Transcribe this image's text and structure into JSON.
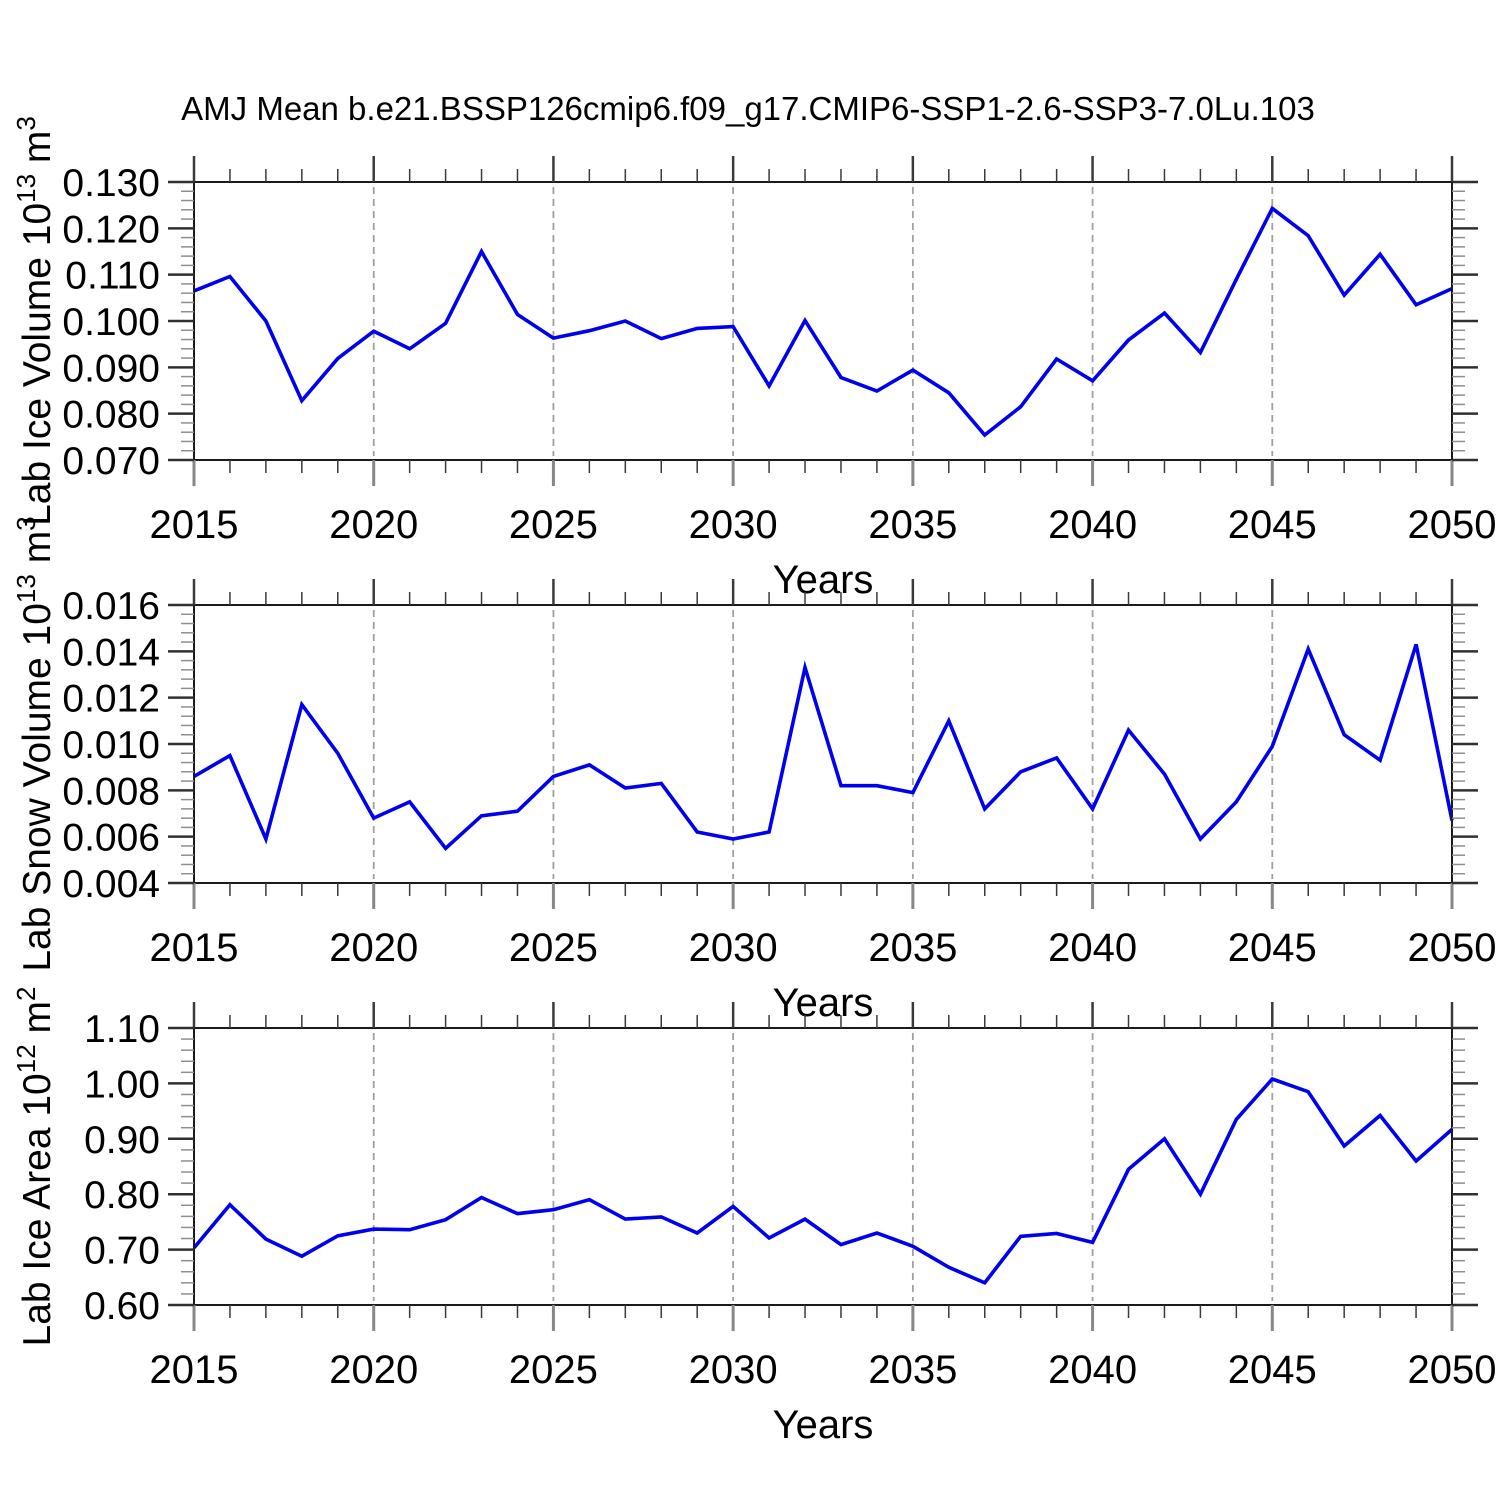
{
  "title": "AMJ Mean b.e21.BSSP126cmip6.f09_g17.CMIP6-SSP1-2.6-SSP3-7.0Lu.103",
  "figure": {
    "background": "#ffffff",
    "line_color": "#0000ee",
    "grid_color": "#a0a0a0"
  },
  "chart_data": [
    {
      "type": "line",
      "title": "",
      "xlabel": "Years",
      "ylabel": "Lab Ice Volume 10^13 m^3",
      "ylabel_parts": {
        "base": "Lab Ice Volume 10",
        "exponent": "13",
        "unit": " m",
        "unit_exponent": "3"
      },
      "x": [
        2015,
        2016,
        2017,
        2018,
        2019,
        2020,
        2021,
        2022,
        2023,
        2024,
        2025,
        2026,
        2027,
        2028,
        2029,
        2030,
        2031,
        2032,
        2033,
        2034,
        2035,
        2036,
        2037,
        2038,
        2039,
        2040,
        2041,
        2042,
        2043,
        2044,
        2045,
        2046,
        2047,
        2048,
        2049,
        2050
      ],
      "values": [
        0.1065,
        0.1096,
        0.1,
        0.0828,
        0.0919,
        0.0978,
        0.094,
        0.0995,
        0.115,
        0.1014,
        0.0963,
        0.0979,
        0.1,
        0.0962,
        0.0984,
        0.0988,
        0.086,
        0.1001,
        0.0878,
        0.0849,
        0.0894,
        0.0845,
        0.0754,
        0.0815,
        0.0918,
        0.0871,
        0.0959,
        0.1017,
        0.0932,
        0.109,
        0.1243,
        0.1184,
        0.1056,
        0.1144,
        0.1035,
        0.107
      ],
      "xlim": [
        2015,
        2050
      ],
      "ylim": [
        0.07,
        0.13
      ],
      "xticks": [
        2015,
        2020,
        2025,
        2030,
        2035,
        2040,
        2045,
        2050
      ],
      "xtick_labels": [
        "2015",
        "2020",
        "2025",
        "2030",
        "2035",
        "2040",
        "2045",
        "2050"
      ],
      "yticks": [
        0.07,
        0.08,
        0.09,
        0.1,
        0.11,
        0.12,
        0.13
      ],
      "ytick_labels": [
        "0.070",
        "0.080",
        "0.090",
        "0.100",
        "0.110",
        "0.120",
        "0.130"
      ],
      "minor_per_major": 4,
      "grid_x": [
        2020,
        2025,
        2030,
        2035,
        2040,
        2045
      ],
      "grid": "vertical-dashed",
      "legend": "none"
    },
    {
      "type": "line",
      "title": "",
      "xlabel": "Years",
      "ylabel": "Lab Snow Volume 10^13 m^3",
      "ylabel_parts": {
        "base": "Lab Snow Volume 10",
        "exponent": "13",
        "unit": " m",
        "unit_exponent": "3"
      },
      "x": [
        2015,
        2016,
        2017,
        2018,
        2019,
        2020,
        2021,
        2022,
        2023,
        2024,
        2025,
        2026,
        2027,
        2028,
        2029,
        2030,
        2031,
        2032,
        2033,
        2034,
        2035,
        2036,
        2037,
        2038,
        2039,
        2040,
        2041,
        2042,
        2043,
        2044,
        2045,
        2046,
        2047,
        2048,
        2049,
        2050
      ],
      "values": [
        0.0086,
        0.0095,
        0.0059,
        0.0117,
        0.0096,
        0.0068,
        0.0075,
        0.0055,
        0.0069,
        0.0071,
        0.0086,
        0.0091,
        0.0081,
        0.0083,
        0.0062,
        0.0059,
        0.0062,
        0.0133,
        0.0082,
        0.0082,
        0.0079,
        0.011,
        0.0072,
        0.0088,
        0.0094,
        0.0072,
        0.0106,
        0.0087,
        0.0059,
        0.0075,
        0.0099,
        0.0141,
        0.0104,
        0.0093,
        0.0143,
        0.0067
      ],
      "xlim": [
        2015,
        2050
      ],
      "ylim": [
        0.004,
        0.016
      ],
      "xticks": [
        2015,
        2020,
        2025,
        2030,
        2035,
        2040,
        2045,
        2050
      ],
      "xtick_labels": [
        "2015",
        "2020",
        "2025",
        "2030",
        "2035",
        "2040",
        "2045",
        "2050"
      ],
      "yticks": [
        0.004,
        0.006,
        0.008,
        0.01,
        0.012,
        0.014,
        0.016
      ],
      "ytick_labels": [
        "0.004",
        "0.006",
        "0.008",
        "0.010",
        "0.012",
        "0.014",
        "0.016"
      ],
      "minor_per_major": 4,
      "grid_x": [
        2020,
        2025,
        2030,
        2035,
        2040,
        2045
      ],
      "grid": "vertical-dashed",
      "legend": "none"
    },
    {
      "type": "line",
      "title": "",
      "xlabel": "Years",
      "ylabel": "Lab Ice Area 10^12 m^2",
      "ylabel_parts": {
        "base": "Lab Ice Area 10",
        "exponent": "12",
        "unit": " m",
        "unit_exponent": "2"
      },
      "x": [
        2015,
        2016,
        2017,
        2018,
        2019,
        2020,
        2021,
        2022,
        2023,
        2024,
        2025,
        2026,
        2027,
        2028,
        2029,
        2030,
        2031,
        2032,
        2033,
        2034,
        2035,
        2036,
        2037,
        2038,
        2039,
        2040,
        2041,
        2042,
        2043,
        2044,
        2045,
        2046,
        2047,
        2048,
        2049,
        2050
      ],
      "values": [
        0.703,
        0.781,
        0.719,
        0.688,
        0.725,
        0.737,
        0.736,
        0.754,
        0.794,
        0.765,
        0.772,
        0.79,
        0.755,
        0.759,
        0.73,
        0.778,
        0.721,
        0.755,
        0.709,
        0.73,
        0.706,
        0.668,
        0.64,
        0.724,
        0.729,
        0.713,
        0.845,
        0.9,
        0.8,
        0.935,
        1.008,
        0.985,
        0.887,
        0.942,
        0.86,
        0.917
      ],
      "xlim": [
        2015,
        2050
      ],
      "ylim": [
        0.6,
        1.1
      ],
      "xticks": [
        2015,
        2020,
        2025,
        2030,
        2035,
        2040,
        2045,
        2050
      ],
      "xtick_labels": [
        "2015",
        "2020",
        "2025",
        "2030",
        "2035",
        "2040",
        "2045",
        "2050"
      ],
      "yticks": [
        0.6,
        0.7,
        0.8,
        0.9,
        1.0,
        1.1
      ],
      "ytick_labels": [
        "0.60",
        "0.70",
        "0.80",
        "0.90",
        "1.00",
        "1.10"
      ],
      "minor_per_major": 4,
      "grid_x": [
        2020,
        2025,
        2030,
        2035,
        2040,
        2045
      ],
      "grid": "vertical-dashed",
      "legend": "none"
    }
  ]
}
